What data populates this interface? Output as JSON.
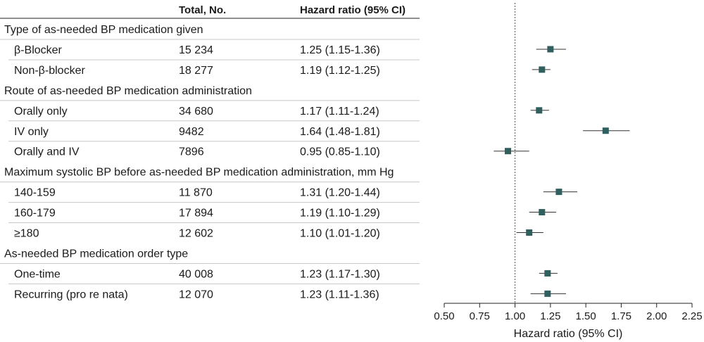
{
  "chart_data": {
    "type": "forest",
    "headers": {
      "total": "Total, No.",
      "hr": "Hazard ratio (95% CI)"
    },
    "xlabel": "Hazard ratio (95% CI)",
    "xlim": [
      0.5,
      2.25
    ],
    "xticks": [
      0.5,
      0.75,
      1.0,
      1.25,
      1.5,
      1.75,
      2.0,
      2.25
    ],
    "xtick_labels": [
      "0.50",
      "0.75",
      "1.00",
      "1.25",
      "1.50",
      "1.75",
      "2.00",
      "2.25"
    ],
    "reference_line": 1.0,
    "marker_color": "#2f5f5f",
    "groups": [
      {
        "title": "Type of as-needed BP medication given",
        "rows": [
          {
            "label": "β-Blocker",
            "total": "15 234",
            "hr_text": "1.25 (1.15-1.36)",
            "hr": 1.25,
            "lo": 1.15,
            "hi": 1.36
          },
          {
            "label": "Non-β-blocker",
            "total": "18 277",
            "hr_text": "1.19 (1.12-1.25)",
            "hr": 1.19,
            "lo": 1.12,
            "hi": 1.25
          }
        ]
      },
      {
        "title": "Route of as-needed BP medication administration",
        "rows": [
          {
            "label": "Orally only",
            "total": "34 680",
            "hr_text": "1.17 (1.11-1.24)",
            "hr": 1.17,
            "lo": 1.11,
            "hi": 1.24
          },
          {
            "label": "IV only",
            "total": "9482",
            "hr_text": "1.64 (1.48-1.81)",
            "hr": 1.64,
            "lo": 1.48,
            "hi": 1.81
          },
          {
            "label": "Orally and IV",
            "total": "7896",
            "hr_text": "0.95 (0.85-1.10)",
            "hr": 0.95,
            "lo": 0.85,
            "hi": 1.1
          }
        ]
      },
      {
        "title": "Maximum systolic BP before as-needed BP medication administration, mm Hg",
        "rows": [
          {
            "label": "140-159",
            "total": "11 870",
            "hr_text": "1.31 (1.20-1.44)",
            "hr": 1.31,
            "lo": 1.2,
            "hi": 1.44
          },
          {
            "label": "160-179",
            "total": "17 894",
            "hr_text": "1.19 (1.10-1.29)",
            "hr": 1.19,
            "lo": 1.1,
            "hi": 1.29
          },
          {
            "label": "≥180",
            "total": "12 602",
            "hr_text": "1.10 (1.01-1.20)",
            "hr": 1.1,
            "lo": 1.01,
            "hi": 1.2
          }
        ]
      },
      {
        "title": "As-needed BP medication order type",
        "rows": [
          {
            "label": "One-time",
            "total": "40 008",
            "hr_text": "1.23 (1.17-1.30)",
            "hr": 1.23,
            "lo": 1.17,
            "hi": 1.3
          },
          {
            "label": "Recurring (pro re nata)",
            "total": "12 070",
            "hr_text": "1.23 (1.11-1.36)",
            "hr": 1.23,
            "lo": 1.11,
            "hi": 1.36
          }
        ]
      }
    ]
  }
}
